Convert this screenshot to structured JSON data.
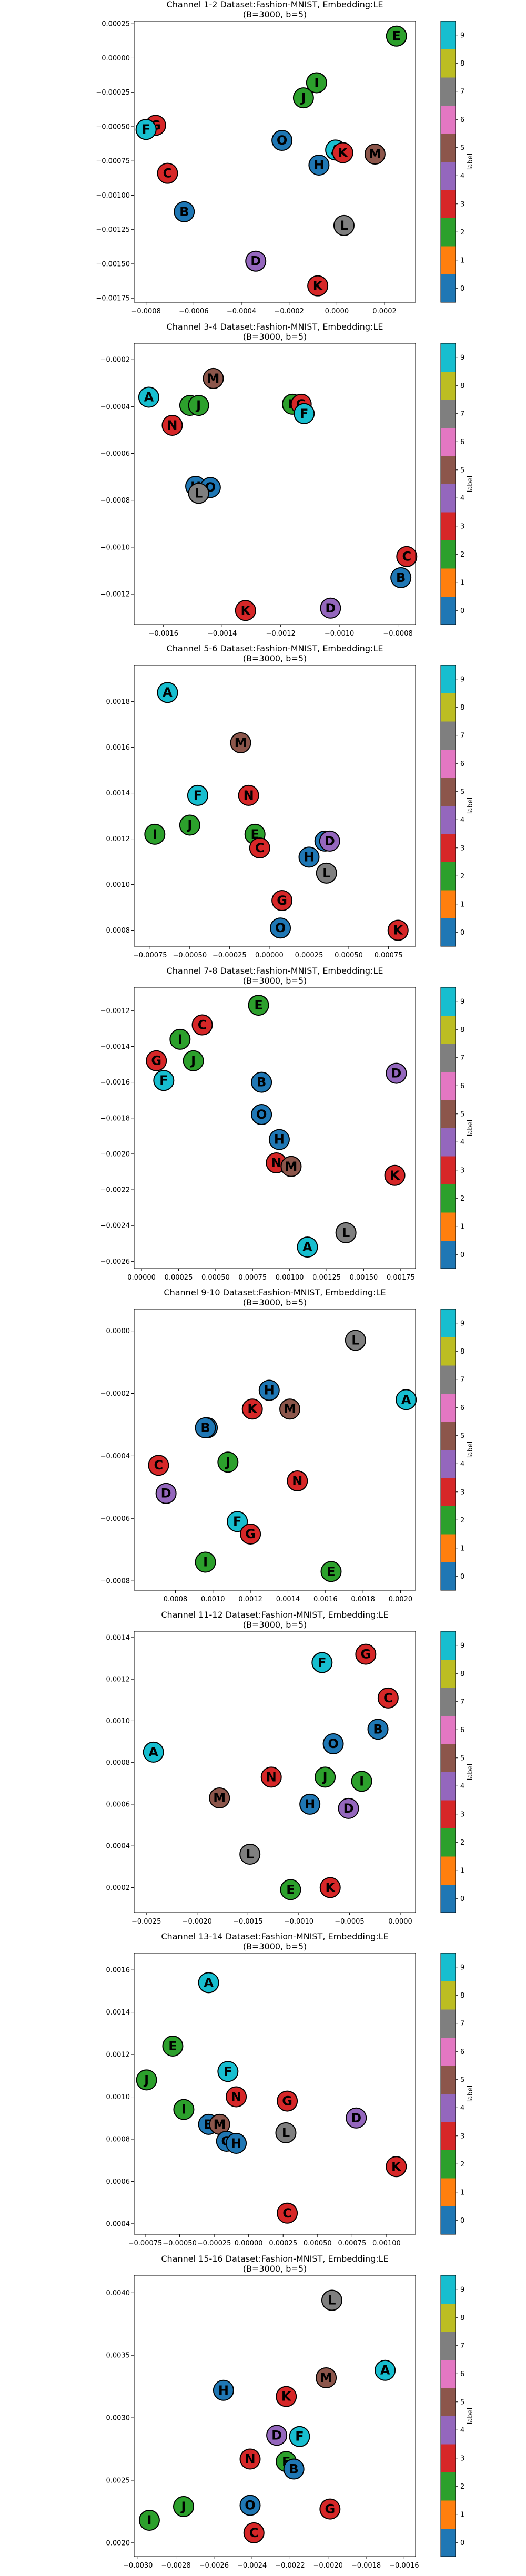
{
  "colorbar": {
    "label": "label",
    "ticks": [
      "0",
      "1",
      "2",
      "3",
      "4",
      "5",
      "6",
      "7",
      "8",
      "9"
    ],
    "colors": [
      "#1f77b4",
      "#ff7f0e",
      "#2ca02c",
      "#d62728",
      "#9467bd",
      "#8c564b",
      "#e377c2",
      "#7f7f7f",
      "#bcbd22",
      "#17becf"
    ]
  },
  "letter_label": {
    "A": 9,
    "B": 0,
    "C": 3,
    "D": 4,
    "E": 2,
    "F": 9,
    "G": 3,
    "H": 0,
    "I": 2,
    "J": 2,
    "K": 3,
    "L": 7,
    "M": 5,
    "N": 3,
    "O": 0
  },
  "chart_data": [
    {
      "type": "scatter",
      "title": "Channel 1-2 Dataset:Fashion-MNIST, Embedding:LE",
      "subtitle": "(B=3000, b=5)",
      "xlim": [
        -0.00085,
        0.00033
      ],
      "ylim": [
        -0.00178,
        0.00027
      ],
      "xticks": [
        -0.0008,
        -0.0006,
        -0.0004,
        -0.0002,
        0.0,
        0.0002
      ],
      "xtick_labels": [
        "−0.0008",
        "−0.0006",
        "−0.0004",
        "−0.0002",
        "0.0000",
        "0.0002"
      ],
      "yticks": [
        0.00025,
        0.0,
        -0.00025,
        -0.0005,
        -0.00075,
        -0.001,
        -0.00125,
        -0.0015,
        -0.00175
      ],
      "ytick_labels": [
        "0.00025",
        "0.00000",
        "−0.00025",
        "−0.00050",
        "−0.00075",
        "−0.00100",
        "−0.00125",
        "−0.00150",
        "−0.00175"
      ],
      "points": [
        {
          "t": "E",
          "x": 0.00025,
          "y": 0.00016
        },
        {
          "t": "I",
          "x": -8.5e-05,
          "y": -0.00018
        },
        {
          "t": "J",
          "x": -0.00014,
          "y": -0.00029
        },
        {
          "t": "A",
          "x": -5e-06,
          "y": -0.00067
        },
        {
          "t": "K",
          "x": 2.5e-05,
          "y": -0.00069
        },
        {
          "t": "M",
          "x": 0.00016,
          "y": -0.0007
        },
        {
          "t": "H",
          "x": -7.5e-05,
          "y": -0.00078
        },
        {
          "t": "O",
          "x": -0.00023,
          "y": -0.0006
        },
        {
          "t": "G",
          "x": -0.00076,
          "y": -0.00049
        },
        {
          "t": "F",
          "x": -0.0008,
          "y": -0.00052
        },
        {
          "t": "C",
          "x": -0.00071,
          "y": -0.00084
        },
        {
          "t": "B",
          "x": -0.00064,
          "y": -0.00112
        },
        {
          "t": "L",
          "x": 3e-05,
          "y": -0.00122
        },
        {
          "t": "D",
          "x": -0.00034,
          "y": -0.00148
        },
        {
          "t": "K",
          "x": -8e-05,
          "y": -0.00166
        }
      ]
    },
    {
      "type": "scatter",
      "title": "Channel 3-4 Dataset:Fashion-MNIST, Embedding:LE",
      "subtitle": "(B=3000, b=5)",
      "xlim": [
        -0.0017,
        -0.00074
      ],
      "ylim": [
        -0.00133,
        -0.00013
      ],
      "xticks": [
        -0.0016,
        -0.0014,
        -0.0012,
        -0.001,
        -0.0008
      ],
      "xtick_labels": [
        "−0.0016",
        "−0.0014",
        "−0.0012",
        "−0.0010",
        "−0.0008"
      ],
      "yticks": [
        -0.0002,
        -0.0004,
        -0.0006,
        -0.0008,
        -0.001,
        -0.0012
      ],
      "ytick_labels": [
        "−0.0002",
        "−0.0004",
        "−0.0006",
        "−0.0008",
        "−0.0010",
        "−0.0012"
      ],
      "points": [
        {
          "t": "M",
          "x": -0.00143,
          "y": -0.00028
        },
        {
          "t": "A",
          "x": -0.00165,
          "y": -0.00036
        },
        {
          "t": "I",
          "x": -0.00151,
          "y": -0.000395
        },
        {
          "t": "J",
          "x": -0.00148,
          "y": -0.000395
        },
        {
          "t": "E",
          "x": -0.00116,
          "y": -0.00039
        },
        {
          "t": "G",
          "x": -0.00113,
          "y": -0.00039
        },
        {
          "t": "F",
          "x": -0.00112,
          "y": -0.00043
        },
        {
          "t": "N",
          "x": -0.00157,
          "y": -0.00048
        },
        {
          "t": "H",
          "x": -0.00149,
          "y": -0.00074
        },
        {
          "t": "O",
          "x": -0.00144,
          "y": -0.000745
        },
        {
          "t": "L",
          "x": -0.00148,
          "y": -0.00077
        },
        {
          "t": "C",
          "x": -0.00077,
          "y": -0.00104
        },
        {
          "t": "B",
          "x": -0.00079,
          "y": -0.00113
        },
        {
          "t": "K",
          "x": -0.00132,
          "y": -0.00127
        },
        {
          "t": "D",
          "x": -0.00103,
          "y": -0.00126
        }
      ]
    },
    {
      "type": "scatter",
      "title": "Channel 5-6 Dataset:Fashion-MNIST, Embedding:LE",
      "subtitle": "(B=3000, b=5)",
      "xlim": [
        -0.00085,
        0.00092
      ],
      "ylim": [
        0.00073,
        0.00196
      ],
      "xticks": [
        -0.00075,
        -0.0005,
        -0.00025,
        0.0,
        0.00025,
        0.0005,
        0.00075
      ],
      "xtick_labels": [
        "−0.00075",
        "−0.00050",
        "−0.00025",
        "0.00000",
        "0.00025",
        "0.00050",
        "0.00075"
      ],
      "yticks": [
        0.0008,
        0.001,
        0.0012,
        0.0014,
        0.0016,
        0.0018
      ],
      "ytick_labels": [
        "0.0008",
        "0.0010",
        "0.0012",
        "0.0014",
        "0.0016",
        "0.0018"
      ],
      "points": [
        {
          "t": "A",
          "x": -0.00064,
          "y": 0.00184
        },
        {
          "t": "M",
          "x": -0.00018,
          "y": 0.00162
        },
        {
          "t": "F",
          "x": -0.00045,
          "y": 0.00139
        },
        {
          "t": "N",
          "x": -0.00013,
          "y": 0.00139
        },
        {
          "t": "I",
          "x": -0.00072,
          "y": 0.00122
        },
        {
          "t": "J",
          "x": -0.0005,
          "y": 0.00126
        },
        {
          "t": "E",
          "x": -9e-05,
          "y": 0.00122
        },
        {
          "t": "C",
          "x": -6e-05,
          "y": 0.00116
        },
        {
          "t": "B",
          "x": 0.00035,
          "y": 0.00119
        },
        {
          "t": "D",
          "x": 0.00038,
          "y": 0.00119
        },
        {
          "t": "H",
          "x": 0.00025,
          "y": 0.00112
        },
        {
          "t": "L",
          "x": 0.00036,
          "y": 0.00105
        },
        {
          "t": "G",
          "x": 8e-05,
          "y": 0.00093
        },
        {
          "t": "O",
          "x": 7e-05,
          "y": 0.00081
        },
        {
          "t": "K",
          "x": 0.00081,
          "y": 0.0008
        }
      ]
    },
    {
      "type": "scatter",
      "title": "Channel 7-8 Dataset:Fashion-MNIST, Embedding:LE",
      "subtitle": "(B=3000, b=5)",
      "xlim": [
        -5e-05,
        0.00185
      ],
      "ylim": [
        -0.00264,
        -0.00107
      ],
      "xticks": [
        0.0,
        0.00025,
        0.0005,
        0.00075,
        0.001,
        0.00125,
        0.0015,
        0.00175
      ],
      "xtick_labels": [
        "0.00000",
        "0.00025",
        "0.00050",
        "0.00075",
        "0.00100",
        "0.00125",
        "0.00150",
        "0.00175"
      ],
      "yticks": [
        -0.0012,
        -0.0014,
        -0.0016,
        -0.0018,
        -0.002,
        -0.0022,
        -0.0024,
        -0.0026
      ],
      "ytick_labels": [
        "−0.0012",
        "−0.0014",
        "−0.0016",
        "−0.0018",
        "−0.0020",
        "−0.0022",
        "−0.0024",
        "−0.0026"
      ],
      "points": [
        {
          "t": "E",
          "x": 0.00079,
          "y": -0.00117
        },
        {
          "t": "C",
          "x": 0.00041,
          "y": -0.00128
        },
        {
          "t": "I",
          "x": 0.00026,
          "y": -0.00136
        },
        {
          "t": "G",
          "x": 0.0001,
          "y": -0.00148
        },
        {
          "t": "J",
          "x": 0.00035,
          "y": -0.00148
        },
        {
          "t": "F",
          "x": 0.00015,
          "y": -0.00159
        },
        {
          "t": "B",
          "x": 0.00081,
          "y": -0.0016
        },
        {
          "t": "D",
          "x": 0.00172,
          "y": -0.00155
        },
        {
          "t": "O",
          "x": 0.00081,
          "y": -0.00178
        },
        {
          "t": "H",
          "x": 0.00093,
          "y": -0.00192
        },
        {
          "t": "N",
          "x": 0.00091,
          "y": -0.00205
        },
        {
          "t": "M",
          "x": 0.00101,
          "y": -0.00207
        },
        {
          "t": "K",
          "x": 0.00171,
          "y": -0.00212
        },
        {
          "t": "L",
          "x": 0.00138,
          "y": -0.00244
        },
        {
          "t": "A",
          "x": 0.00112,
          "y": -0.00252
        }
      ]
    },
    {
      "type": "scatter",
      "title": "Channel 9-10 Dataset:Fashion-MNIST, Embedding:LE",
      "subtitle": "(B=3000, b=5)",
      "xlim": [
        0.00058,
        0.00208
      ],
      "ylim": [
        -0.00083,
        7e-05
      ],
      "xticks": [
        0.0008,
        0.001,
        0.0012,
        0.0014,
        0.0016,
        0.0018,
        0.002
      ],
      "xtick_labels": [
        "0.0008",
        "0.0010",
        "0.0012",
        "0.0014",
        "0.0016",
        "0.0018",
        "0.0020"
      ],
      "yticks": [
        0.0,
        -0.0002,
        -0.0004,
        -0.0006,
        -0.0008
      ],
      "ytick_labels": [
        "0.0000",
        "−0.0002",
        "−0.0004",
        "−0.0006",
        "−0.0008"
      ],
      "points": [
        {
          "t": "L",
          "x": 0.00176,
          "y": -3e-05
        },
        {
          "t": "A",
          "x": 0.00203,
          "y": -0.00022
        },
        {
          "t": "H",
          "x": 0.0013,
          "y": -0.00019
        },
        {
          "t": "K",
          "x": 0.00121,
          "y": -0.00025
        },
        {
          "t": "M",
          "x": 0.00141,
          "y": -0.00025
        },
        {
          "t": "O",
          "x": 0.00097,
          "y": -0.00031
        },
        {
          "t": "B",
          "x": 0.00096,
          "y": -0.00031
        },
        {
          "t": "J",
          "x": 0.00108,
          "y": -0.00042
        },
        {
          "t": "C",
          "x": 0.00071,
          "y": -0.00043
        },
        {
          "t": "N",
          "x": 0.00145,
          "y": -0.00048
        },
        {
          "t": "D",
          "x": 0.00075,
          "y": -0.00052
        },
        {
          "t": "F",
          "x": 0.00113,
          "y": -0.00061
        },
        {
          "t": "G",
          "x": 0.0012,
          "y": -0.00065
        },
        {
          "t": "I",
          "x": 0.00096,
          "y": -0.00074
        },
        {
          "t": "E",
          "x": 0.00163,
          "y": -0.00077
        }
      ]
    },
    {
      "type": "scatter",
      "title": "Channel 11-12 Dataset:Fashion-MNIST, Embedding:LE",
      "subtitle": "(B=3000, b=5)",
      "xlim": [
        -0.00262,
        0.00015
      ],
      "ylim": [
        8e-05,
        0.00143
      ],
      "xticks": [
        -0.0025,
        -0.002,
        -0.0015,
        -0.001,
        -0.0005,
        0.0
      ],
      "xtick_labels": [
        "−0.0025",
        "−0.0020",
        "−0.0015",
        "−0.0010",
        "−0.0005",
        "0.0000"
      ],
      "yticks": [
        0.0002,
        0.0004,
        0.0006,
        0.0008,
        0.001,
        0.0012,
        0.0014
      ],
      "ytick_labels": [
        "0.0002",
        "0.0004",
        "0.0006",
        "0.0008",
        "0.0010",
        "0.0012",
        "0.0014"
      ],
      "points": [
        {
          "t": "G",
          "x": -0.00034,
          "y": 0.00132
        },
        {
          "t": "F",
          "x": -0.00077,
          "y": 0.00128
        },
        {
          "t": "C",
          "x": -0.00012,
          "y": 0.00111
        },
        {
          "t": "B",
          "x": -0.00022,
          "y": 0.00096
        },
        {
          "t": "O",
          "x": -0.00066,
          "y": 0.00089
        },
        {
          "t": "A",
          "x": -0.00243,
          "y": 0.00085
        },
        {
          "t": "N",
          "x": -0.00127,
          "y": 0.00073
        },
        {
          "t": "J",
          "x": -0.00074,
          "y": 0.00073
        },
        {
          "t": "I",
          "x": -0.00038,
          "y": 0.00071
        },
        {
          "t": "M",
          "x": -0.00178,
          "y": 0.00063
        },
        {
          "t": "H",
          "x": -0.00089,
          "y": 0.0006
        },
        {
          "t": "D",
          "x": -0.00051,
          "y": 0.00058
        },
        {
          "t": "L",
          "x": -0.00148,
          "y": 0.00036
        },
        {
          "t": "E",
          "x": -0.00108,
          "y": 0.00019
        },
        {
          "t": "K",
          "x": -0.00069,
          "y": 0.0002
        }
      ]
    },
    {
      "type": "scatter",
      "title": "Channel 13-14 Dataset:Fashion-MNIST, Embedding:LE",
      "subtitle": "(B=3000, b=5)",
      "xlim": [
        -0.00083,
        0.00121
      ],
      "ylim": [
        0.00035,
        0.00168
      ],
      "xticks": [
        -0.00075,
        -0.0005,
        -0.00025,
        0.0,
        0.00025,
        0.0005,
        0.00075,
        0.001
      ],
      "xtick_labels": [
        "−0.00075",
        "−0.00050",
        "−0.00025",
        "0.00000",
        "0.00025",
        "0.00050",
        "0.00075",
        "0.00100"
      ],
      "yticks": [
        0.0004,
        0.0006,
        0.0008,
        0.001,
        0.0012,
        0.0014,
        0.0016
      ],
      "ytick_labels": [
        "0.0004",
        "0.0006",
        "0.0008",
        "0.0010",
        "0.0012",
        "0.0014",
        "0.0016"
      ],
      "points": [
        {
          "t": "A",
          "x": -0.00029,
          "y": 0.00154
        },
        {
          "t": "E",
          "x": -0.00055,
          "y": 0.00124
        },
        {
          "t": "F",
          "x": -0.00015,
          "y": 0.00112
        },
        {
          "t": "J",
          "x": -0.00074,
          "y": 0.00108
        },
        {
          "t": "N",
          "x": -9e-05,
          "y": 0.001
        },
        {
          "t": "G",
          "x": 0.00028,
          "y": 0.00098
        },
        {
          "t": "I",
          "x": -0.00047,
          "y": 0.00094
        },
        {
          "t": "D",
          "x": 0.00078,
          "y": 0.0009
        },
        {
          "t": "B",
          "x": -0.00029,
          "y": 0.00087
        },
        {
          "t": "M",
          "x": -0.00021,
          "y": 0.00087
        },
        {
          "t": "L",
          "x": 0.00027,
          "y": 0.00083
        },
        {
          "t": "O",
          "x": -0.00016,
          "y": 0.00079
        },
        {
          "t": "H",
          "x": -9e-05,
          "y": 0.00078
        },
        {
          "t": "K",
          "x": 0.00107,
          "y": 0.00067
        },
        {
          "t": "C",
          "x": 0.00028,
          "y": 0.00045
        }
      ]
    },
    {
      "type": "scatter",
      "title": "Channel 15-16 Dataset:Fashion-MNIST, Embedding:LE",
      "subtitle": "(B=3000, b=5)",
      "xlim": [
        -0.00302,
        -0.00154
      ],
      "ylim": [
        0.00189,
        0.00414
      ],
      "xticks": [
        -0.003,
        -0.0028,
        -0.0026,
        -0.0024,
        -0.0022,
        -0.002,
        -0.0018,
        -0.0016
      ],
      "xtick_labels": [
        "−0.0030",
        "−0.0028",
        "−0.0026",
        "−0.0024",
        "−0.0022",
        "−0.0020",
        "−0.0018",
        "−0.0016"
      ],
      "yticks": [
        0.002,
        0.0025,
        0.003,
        0.0035,
        0.004
      ],
      "ytick_labels": [
        "0.0020",
        "0.0025",
        "0.0030",
        "0.0035",
        "0.0040"
      ],
      "points": [
        {
          "t": "L",
          "x": -0.00198,
          "y": 0.00394
        },
        {
          "t": "A",
          "x": -0.0017,
          "y": 0.00338
        },
        {
          "t": "M",
          "x": -0.00201,
          "y": 0.00332
        },
        {
          "t": "H",
          "x": -0.00255,
          "y": 0.00322
        },
        {
          "t": "K",
          "x": -0.00222,
          "y": 0.00317
        },
        {
          "t": "D",
          "x": -0.00227,
          "y": 0.00286
        },
        {
          "t": "F",
          "x": -0.00215,
          "y": 0.00285
        },
        {
          "t": "N",
          "x": -0.00241,
          "y": 0.00267
        },
        {
          "t": "E",
          "x": -0.00222,
          "y": 0.00265
        },
        {
          "t": "B",
          "x": -0.00218,
          "y": 0.00259
        },
        {
          "t": "O",
          "x": -0.00241,
          "y": 0.0023
        },
        {
          "t": "J",
          "x": -0.00276,
          "y": 0.00229
        },
        {
          "t": "G",
          "x": -0.00199,
          "y": 0.00227
        },
        {
          "t": "I",
          "x": -0.00294,
          "y": 0.00218
        },
        {
          "t": "C",
          "x": -0.00239,
          "y": 0.00208
        }
      ]
    }
  ]
}
